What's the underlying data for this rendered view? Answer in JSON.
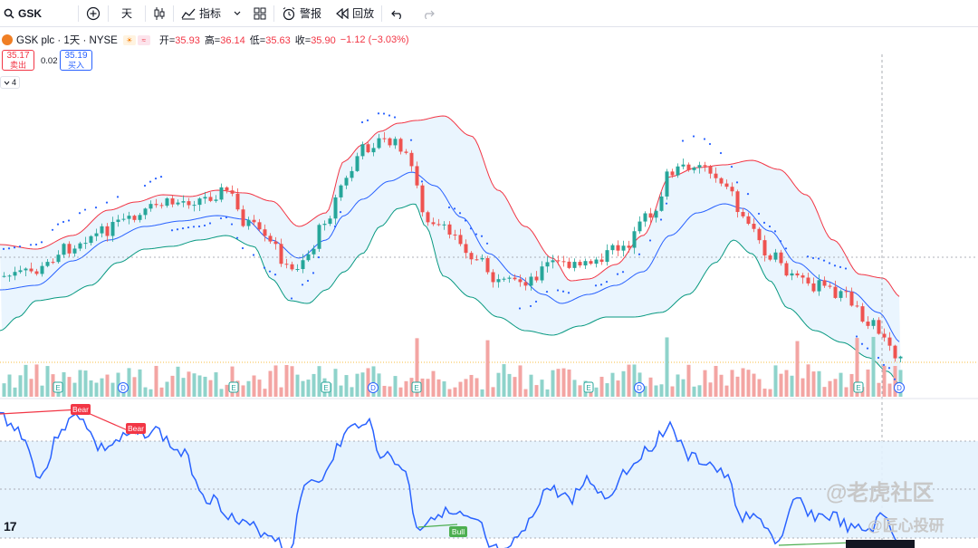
{
  "toolbar": {
    "symbol": "GSK",
    "interval": "天",
    "indicators_label": "指标",
    "alert_label": "警报",
    "replay_label": "回放"
  },
  "legend": {
    "title": "GSK plc · 1天 · NYSE",
    "open_label": "开=",
    "open": "35.93",
    "high_label": "高=",
    "high": "36.14",
    "low_label": "低=",
    "low": "35.63",
    "close_label": "收=",
    "close": "35.90",
    "change": "−1.12 (−3.03%)"
  },
  "trade": {
    "sell_price": "35.17",
    "sell_label": "卖出",
    "spread": "0.02",
    "buy_price": "35.19",
    "buy_label": "买入"
  },
  "indicator_count": "4",
  "annotations": {
    "bear1": "Bear",
    "bear2": "Bear",
    "bull1": "Bull",
    "event_e": "E",
    "event_d": "D"
  },
  "watermark": {
    "line1": "@老虎社区",
    "line2": "@匠心投研"
  },
  "colors": {
    "up": "#26a69a",
    "down": "#ef5350",
    "bb_upper": "#f23645",
    "bb_lower": "#089981",
    "bb_basis": "#2962ff",
    "rsi": "#2962ff",
    "band_fill": "#e3f2fd"
  }
}
